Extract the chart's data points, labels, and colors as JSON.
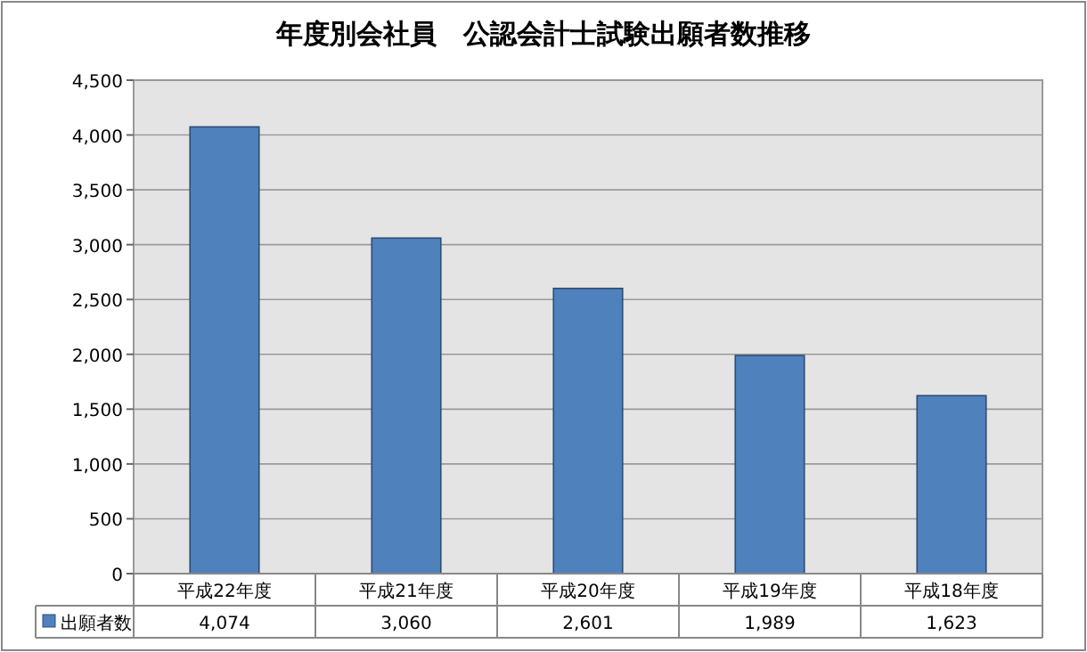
{
  "chart_data": {
    "type": "bar",
    "title": "年度別会社員　公認会計士試験出願者数推移",
    "categories": [
      "平成22年度",
      "平成21年度",
      "平成20年度",
      "平成19年度",
      "平成18年度"
    ],
    "series": [
      {
        "name": "出願者数",
        "color": "#4f81bd",
        "values": [
          4074,
          3060,
          2601,
          1989,
          1623
        ],
        "value_labels": [
          "4,074",
          "3,060",
          "2,601",
          "1,989",
          "1,623"
        ]
      }
    ],
    "ylim": [
      0,
      4500
    ],
    "yticks": [
      0,
      {
        "value": 500,
        "label": "500"
      },
      {
        "value": 1000,
        "label": "1,000"
      },
      {
        "value": 1500,
        "label": "1,500"
      },
      {
        "value": 2000,
        "label": "2,000"
      },
      {
        "value": 2500,
        "label": "2,500"
      },
      {
        "value": 3000,
        "label": "3,000"
      },
      {
        "value": 3500,
        "label": "3,500"
      },
      {
        "value": 4000,
        "label": "4,000"
      },
      {
        "value": 4500,
        "label": "4,500"
      }
    ],
    "grid": "y",
    "legend": "bottom left"
  }
}
